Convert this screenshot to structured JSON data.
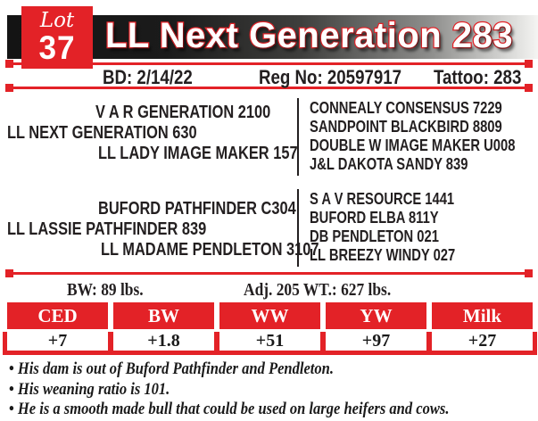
{
  "colors": {
    "accent_red": "#e32227",
    "bar_gradient_dark": "#141414",
    "bar_gradient_light": "#f4f4f2",
    "text_black": "#231f20"
  },
  "lot": {
    "label": "Lot",
    "number": "37"
  },
  "title": "LL Next Generation 283",
  "meta": {
    "bd": "BD: 2/14/22",
    "reg": "Reg No: 20597917",
    "tattoo": "Tattoo: 283"
  },
  "pedigree": {
    "sire": {
      "sire_of_sire": "V A R GENERATION 2100",
      "name": "LL NEXT GENERATION 630",
      "dam_of_sire": "LL LADY IMAGE MAKER 157",
      "ancestors": [
        "CONNEALY CONSENSUS 7229",
        "SANDPOINT BLACKBIRD 8809",
        "DOUBLE W IMAGE MAKER U008",
        "J&L DAKOTA SANDY 839"
      ]
    },
    "dam": {
      "sire_of_dam": "BUFORD PATHFINDER C304",
      "name": "LL LASSIE PATHFINDER 839",
      "dam_of_dam": "LL MADAME PENDLETON 3107",
      "ancestors": [
        "S A V RESOURCE 1441",
        "BUFORD ELBA 811Y",
        "DB PENDLETON 021",
        "LL BREEZY WINDY 027"
      ]
    }
  },
  "weights": {
    "bw": "BW: 89 lbs.",
    "adj205": "Adj. 205 WT.: 627 lbs."
  },
  "epd": {
    "headers": [
      "CED",
      "BW",
      "WW",
      "YW",
      "Milk"
    ],
    "values": [
      "+7",
      "+1.8",
      "+51",
      "+97",
      "+27"
    ]
  },
  "notes": [
    "His dam is out of Buford Pathfinder and Pendleton.",
    "His weaning ratio is 101.",
    "He is a smooth made bull that could be used on large heifers and cows."
  ]
}
